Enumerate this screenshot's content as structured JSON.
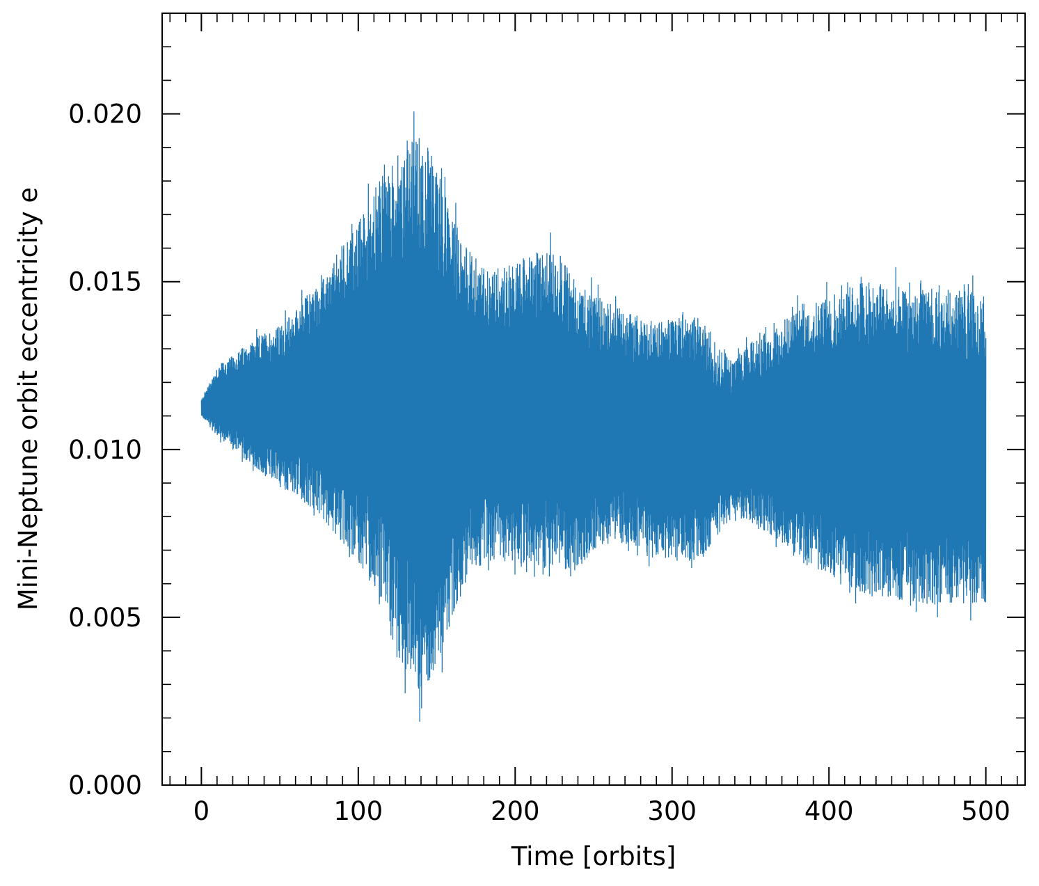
{
  "chart_data": {
    "type": "line",
    "title": "",
    "xlabel": "Time [orbits]",
    "ylabel": "Mini-Neptune orbit eccentricity e",
    "xlim": [
      -25,
      525
    ],
    "ylim": [
      0.0,
      0.023
    ],
    "xticks": [
      0,
      100,
      200,
      300,
      400,
      500
    ],
    "xtick_labels": [
      "0",
      "100",
      "200",
      "300",
      "400",
      "500"
    ],
    "x_minor_step": 10,
    "yticks": [
      0.0,
      0.005,
      0.01,
      0.015,
      0.02
    ],
    "ytick_labels": [
      "0.000",
      "0.005",
      "0.010",
      "0.015",
      "0.020"
    ],
    "y_minor_step": 0.001,
    "grid": false,
    "legend": "none",
    "tick_direction": "in",
    "series": [
      {
        "color": "#1f77b4",
        "x_range": [
          0,
          500
        ],
        "description": "rapidly oscillating eccentricity; band envelope (upper/lower) sampled below",
        "envelope": {
          "x": [
            0,
            10,
            20,
            30,
            40,
            50,
            60,
            70,
            80,
            90,
            100,
            110,
            120,
            130,
            140,
            150,
            160,
            170,
            180,
            190,
            200,
            210,
            220,
            230,
            240,
            250,
            260,
            270,
            280,
            290,
            300,
            310,
            320,
            330,
            340,
            350,
            360,
            370,
            380,
            390,
            400,
            410,
            420,
            430,
            440,
            450,
            460,
            470,
            480,
            490,
            500
          ],
          "upper": [
            0.0115,
            0.0125,
            0.0128,
            0.0132,
            0.0135,
            0.0137,
            0.0142,
            0.0148,
            0.0152,
            0.0162,
            0.0168,
            0.0178,
            0.0185,
            0.019,
            0.0195,
            0.0185,
            0.017,
            0.016,
            0.0155,
            0.0155,
            0.0156,
            0.0158,
            0.016,
            0.0158,
            0.015,
            0.0146,
            0.0144,
            0.0142,
            0.014,
            0.0138,
            0.014,
            0.0142,
            0.0138,
            0.013,
            0.0127,
            0.0132,
            0.0135,
            0.0138,
            0.0143,
            0.0145,
            0.0146,
            0.0148,
            0.015,
            0.015,
            0.0149,
            0.0148,
            0.0148,
            0.0149,
            0.0148,
            0.0147,
            0.0146
          ],
          "lower": [
            0.011,
            0.0104,
            0.01,
            0.0096,
            0.0092,
            0.0089,
            0.0086,
            0.0082,
            0.0078,
            0.0072,
            0.0066,
            0.0058,
            0.0045,
            0.0033,
            0.0027,
            0.0035,
            0.005,
            0.0062,
            0.0066,
            0.0067,
            0.0066,
            0.0066,
            0.0064,
            0.0064,
            0.0065,
            0.0068,
            0.0071,
            0.0072,
            0.007,
            0.0068,
            0.0067,
            0.0066,
            0.0068,
            0.0075,
            0.008,
            0.0078,
            0.0075,
            0.0071,
            0.0067,
            0.0064,
            0.0062,
            0.0059,
            0.0057,
            0.0056,
            0.0055,
            0.0055,
            0.0054,
            0.0054,
            0.0054,
            0.0054,
            0.0054
          ]
        }
      }
    ]
  }
}
